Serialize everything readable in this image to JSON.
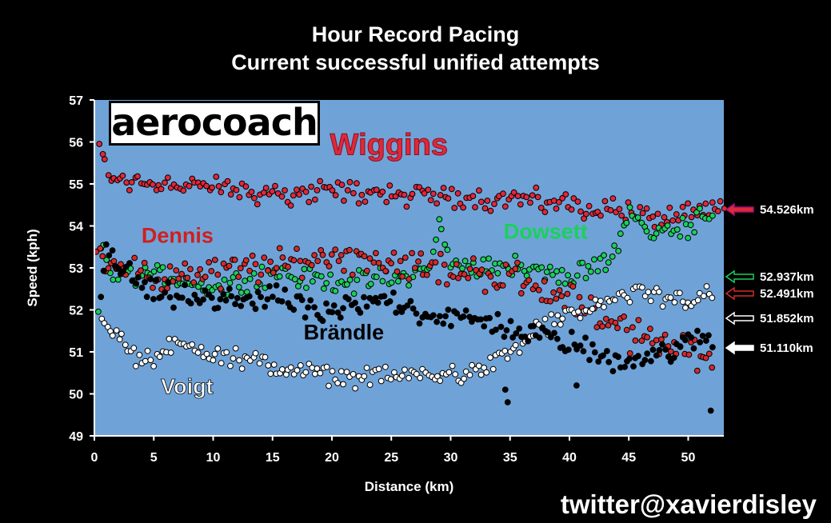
{
  "title": "Hour Record Pacing",
  "subtitle": "Current successful unified attempts",
  "logo_text": "aerocoach",
  "watermark": "twitter@xavierdisley",
  "colors": {
    "background": "#000000",
    "plot_bg": "#6fa3d8"
  },
  "chart_data": {
    "type": "scatter",
    "xlabel": "Distance (km)",
    "ylabel": "Speed (kph)",
    "xlim": [
      0,
      53
    ],
    "ylim": [
      49,
      57
    ],
    "xticks": [
      "0",
      "5",
      "10",
      "15",
      "20",
      "25",
      "30",
      "35",
      "40",
      "45",
      "50"
    ],
    "yticks": [
      "49",
      "50",
      "51",
      "52",
      "53",
      "54",
      "55",
      "56",
      "57"
    ],
    "grid": false,
    "series": [
      {
        "name": "Wiggins",
        "color": "#e0283a",
        "edge": "#000000",
        "label_color": "#e0283a",
        "final_distance": "54.526km",
        "trend": [
          [
            0.4,
            56.0
          ],
          [
            1,
            55.2
          ],
          [
            2,
            55.1
          ],
          [
            5,
            55.05
          ],
          [
            10,
            54.9
          ],
          [
            15,
            54.75
          ],
          [
            20,
            54.85
          ],
          [
            25,
            54.75
          ],
          [
            30,
            54.7
          ],
          [
            35,
            54.65
          ],
          [
            40,
            54.5
          ],
          [
            44,
            54.4
          ],
          [
            47,
            54.2
          ],
          [
            50,
            54.2
          ],
          [
            53,
            54.4
          ]
        ],
        "jitter": 0.22
      },
      {
        "name": "Dowsett",
        "color": "#1bd05a",
        "edge": "#000000",
        "label_color": "#1bd05a",
        "final_distance": "52.937km",
        "trend": [
          [
            0.3,
            52.0
          ],
          [
            0.6,
            53.7
          ],
          [
            1.5,
            52.8
          ],
          [
            5,
            52.85
          ],
          [
            10,
            52.55
          ],
          [
            15,
            52.85
          ],
          [
            20,
            52.65
          ],
          [
            25,
            52.75
          ],
          [
            28,
            52.9
          ],
          [
            29,
            54.1
          ],
          [
            30,
            53.0
          ],
          [
            35,
            53.1
          ],
          [
            40,
            52.7
          ],
          [
            44,
            53.4
          ],
          [
            45,
            54.4
          ],
          [
            47,
            53.8
          ],
          [
            50,
            54.0
          ],
          [
            52,
            54.4
          ]
        ],
        "jitter": 0.2
      },
      {
        "name": "Dennis",
        "color": "#d42a2a",
        "edge": "#000000",
        "label_color": "#cf2020",
        "final_distance": "52.491km",
        "trend": [
          [
            0.2,
            53.4
          ],
          [
            1,
            53.3
          ],
          [
            2,
            53.0
          ],
          [
            5,
            52.7
          ],
          [
            10,
            52.9
          ],
          [
            15,
            53.0
          ],
          [
            20,
            53.3
          ],
          [
            25,
            53.2
          ],
          [
            30,
            52.9
          ],
          [
            35,
            52.8
          ],
          [
            38,
            52.5
          ],
          [
            42,
            52.0
          ],
          [
            45,
            51.4
          ],
          [
            48,
            51.2
          ],
          [
            50,
            51.0
          ],
          [
            52,
            51.0
          ]
        ],
        "jitter": 0.3
      },
      {
        "name": "Voigt",
        "color": "#ffffff",
        "edge": "#000000",
        "label_color": "#ffffff",
        "final_distance": "51.852km",
        "trend": [
          [
            0.6,
            51.8
          ],
          [
            2,
            51.4
          ],
          [
            4,
            50.7
          ],
          [
            7,
            51.2
          ],
          [
            10,
            51.0
          ],
          [
            15,
            50.65
          ],
          [
            20,
            50.4
          ],
          [
            25,
            50.4
          ],
          [
            30,
            50.5
          ],
          [
            33,
            50.6
          ],
          [
            35,
            51.0
          ],
          [
            38,
            51.6
          ],
          [
            42,
            52.1
          ],
          [
            46,
            52.4
          ],
          [
            50,
            52.2
          ],
          [
            52,
            52.4
          ]
        ],
        "jitter": 0.18
      },
      {
        "name": "Brändle",
        "color": "#000000",
        "edge": "#000000",
        "label_color": "#000000",
        "final_distance": "51.110km",
        "trend": [
          [
            0.5,
            52.3
          ],
          [
            1,
            53.5
          ],
          [
            2,
            53.0
          ],
          [
            5,
            52.4
          ],
          [
            10,
            52.2
          ],
          [
            15,
            52.3
          ],
          [
            20,
            51.9
          ],
          [
            25,
            52.3
          ],
          [
            28,
            51.9
          ],
          [
            30,
            51.8
          ],
          [
            35,
            51.6
          ],
          [
            40,
            51.2
          ],
          [
            44,
            50.8
          ],
          [
            48,
            51.0
          ],
          [
            52,
            51.3
          ]
        ],
        "jitter": 0.22
      }
    ],
    "annotations": {
      "outliers": [
        [
          34.8,
          49.8
        ],
        [
          51.9,
          49.6
        ],
        [
          40.6,
          50.2
        ],
        [
          34.6,
          50.1
        ]
      ]
    }
  }
}
